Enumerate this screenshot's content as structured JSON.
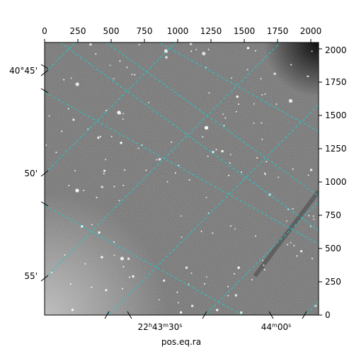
{
  "figure": {
    "xlabel": "pos.eq.ra",
    "grid_color": "#22c9c9",
    "frame_color": "#000000"
  },
  "pixel_axes": {
    "top_ticks": [
      "0",
      "250",
      "500",
      "750",
      "1000",
      "1250",
      "1500",
      "1750",
      "2000"
    ],
    "right_ticks": [
      "0",
      "250",
      "500",
      "750",
      "1000",
      "1250",
      "1500",
      "1750",
      "2000"
    ]
  },
  "world_axes": {
    "dec_labels": [
      "40°45'",
      "50'",
      "55'"
    ],
    "ra_labels": [
      {
        "h": "22",
        "m": "43",
        "s": "30"
      },
      {
        "h": "",
        "m": "44",
        "s": "00"
      }
    ]
  }
}
